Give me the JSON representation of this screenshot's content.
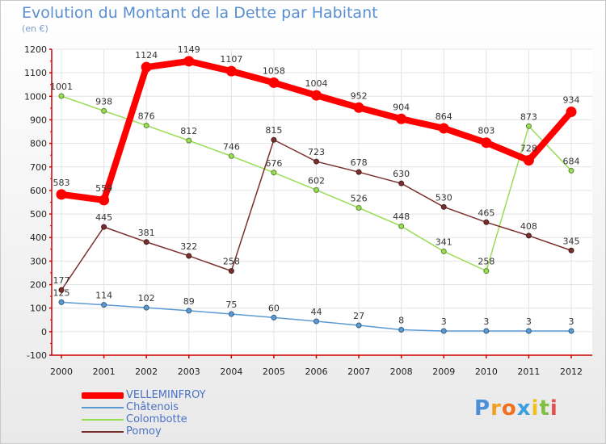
{
  "chart_data": {
    "type": "line",
    "title": "Evolution du Montant de la Dette par Habitant",
    "subtitle": "(en €)",
    "xlabel": "",
    "ylabel": "",
    "x": [
      "2000",
      "2001",
      "2002",
      "2003",
      "2004",
      "2005",
      "2006",
      "2007",
      "2008",
      "2009",
      "2010",
      "2011",
      "2012"
    ],
    "ylim": [
      -100,
      1200
    ],
    "yticks": [
      -100,
      0,
      100,
      200,
      300,
      400,
      500,
      600,
      700,
      800,
      900,
      1000,
      1100,
      1200
    ],
    "grid": true,
    "legend_position": "bottom-left",
    "series": [
      {
        "name": "Châtenois",
        "color": "#5b9bd5",
        "values": [
          125,
          114,
          102,
          89,
          75,
          60,
          44,
          27,
          8,
          3,
          3,
          3,
          3
        ]
      },
      {
        "name": "Colombotte",
        "color": "#99dd55",
        "values": [
          1001,
          938,
          876,
          812,
          746,
          676,
          602,
          526,
          448,
          341,
          258,
          873,
          684
        ]
      },
      {
        "name": "Pomoy",
        "color": "#7a2f2f",
        "values": [
          177,
          445,
          381,
          322,
          258,
          815,
          723,
          678,
          630,
          530,
          465,
          408,
          345
        ]
      },
      {
        "name": "VELLEMINFROY",
        "color": "#ff0000",
        "values": [
          583,
          559,
          1124,
          1149,
          1107,
          1058,
          1004,
          952,
          904,
          864,
          803,
          728,
          934
        ]
      }
    ]
  },
  "legend": [
    {
      "name": "VELLEMINFROY",
      "color": "#ff0000"
    },
    {
      "name": "Châtenois",
      "color": "#5b9bd5"
    },
    {
      "name": "Colombotte",
      "color": "#99dd55"
    },
    {
      "name": "Pomoy",
      "color": "#7a2f2f"
    }
  ],
  "brand": {
    "letters": [
      "P",
      "r",
      "o",
      "x",
      "i",
      "t",
      "i"
    ],
    "colors": [
      "#4a90d9",
      "#f0a020",
      "#f07020",
      "#3aa0e0",
      "#f0c020",
      "#80c040",
      "#e05050"
    ]
  }
}
